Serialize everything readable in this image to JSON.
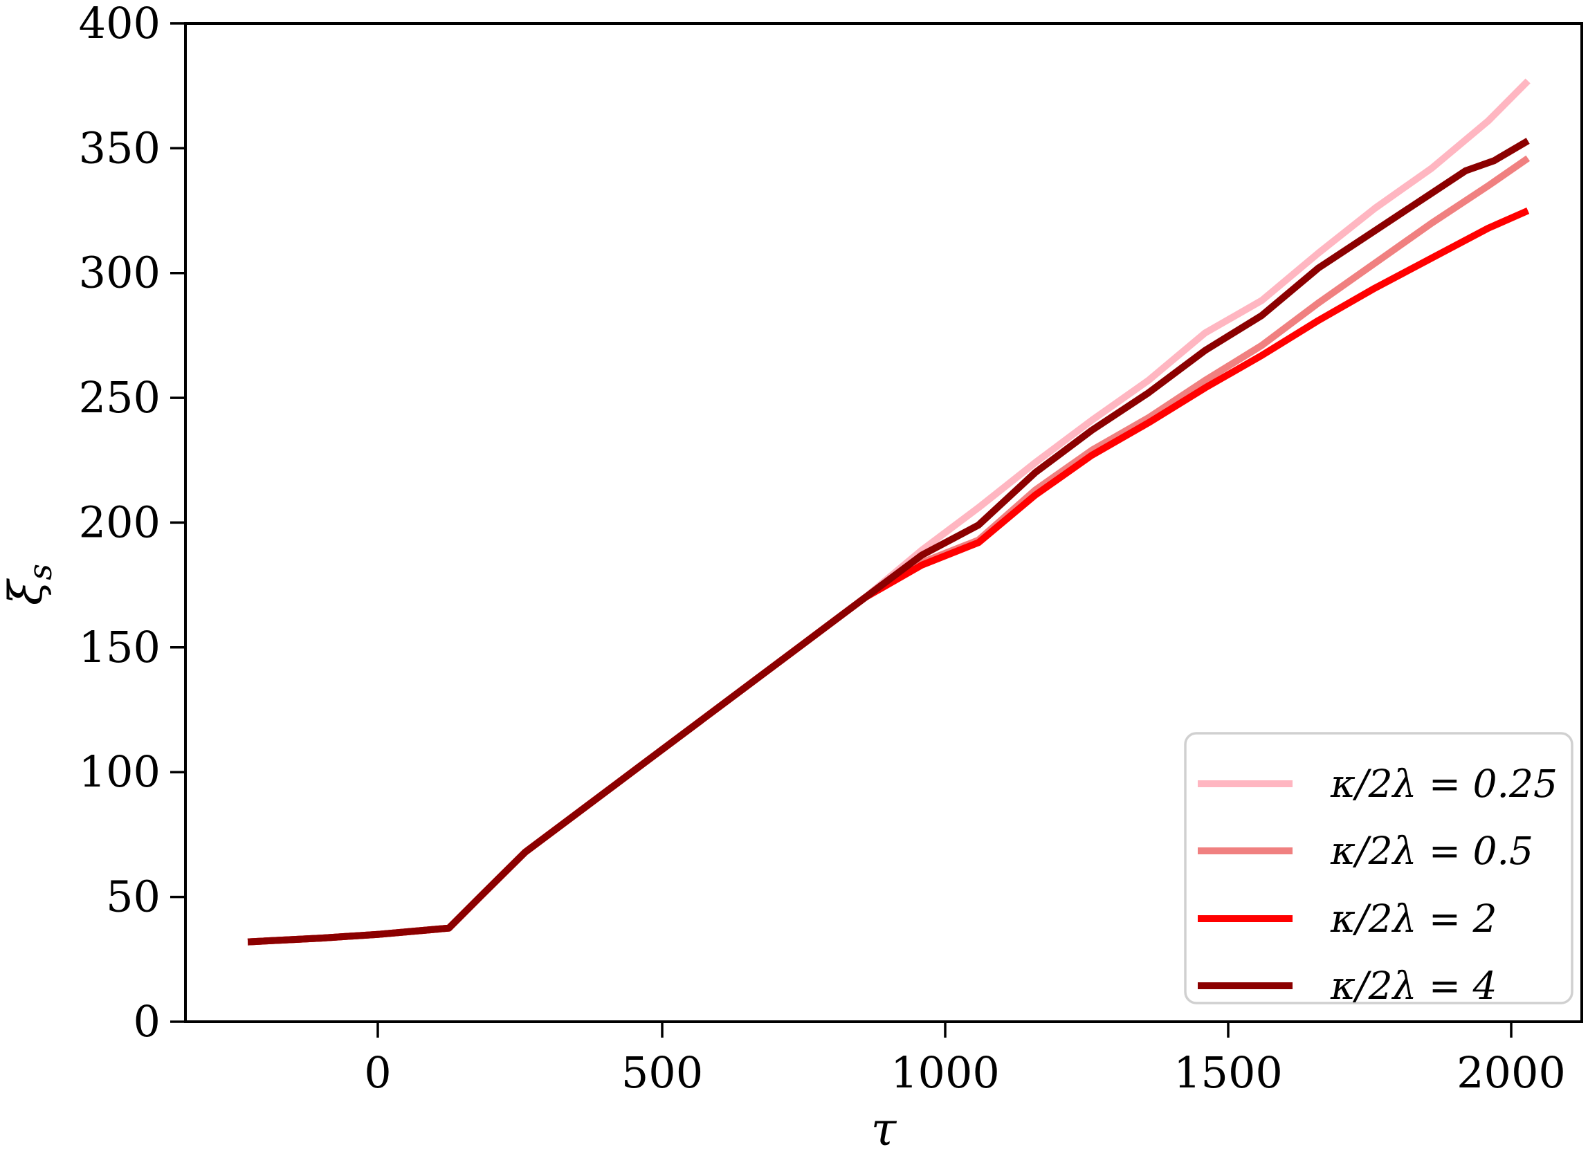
{
  "chart_data": {
    "type": "line",
    "title": "",
    "xlabel": "τ",
    "ylabel": "ξ_s",
    "ylabel_parts": {
      "base": "ξ",
      "sub": "s"
    },
    "xlim": [
      -340,
      2125
    ],
    "ylim": [
      0,
      400
    ],
    "x_tick_labels": [
      "0",
      "500",
      "1000",
      "1500",
      "2000"
    ],
    "x_tick_values": [
      0,
      500,
      1000,
      1500,
      2000
    ],
    "y_tick_labels": [
      "0",
      "50",
      "100",
      "150",
      "200",
      "250",
      "300",
      "350",
      "400"
    ],
    "y_tick_values": [
      0,
      50,
      100,
      150,
      200,
      250,
      300,
      350,
      400
    ],
    "grid": false,
    "legend_position": "lower right",
    "axis_color": "#000000",
    "legend_border_color": "#d0d0d0",
    "series": [
      {
        "label": "κ/2λ = 0.25",
        "color": "#ffb6c1",
        "points": [
          [
            -230,
            32
          ],
          [
            -100,
            33.5
          ],
          [
            0,
            35
          ],
          [
            125,
            37.5
          ],
          [
            180,
            50
          ],
          [
            260,
            68
          ],
          [
            360,
            85
          ],
          [
            460,
            102
          ],
          [
            560,
            119
          ],
          [
            660,
            136
          ],
          [
            760,
            153
          ],
          [
            860,
            170
          ],
          [
            960,
            189
          ],
          [
            1060,
            206
          ],
          [
            1160,
            224
          ],
          [
            1260,
            241
          ],
          [
            1360,
            257
          ],
          [
            1460,
            276
          ],
          [
            1560,
            289
          ],
          [
            1660,
            308
          ],
          [
            1760,
            326
          ],
          [
            1860,
            342
          ],
          [
            1960,
            361
          ],
          [
            2030,
            377
          ]
        ]
      },
      {
        "label": "κ/2λ = 0.5",
        "color": "#f08080",
        "points": [
          [
            -230,
            32
          ],
          [
            -100,
            33.5
          ],
          [
            0,
            35
          ],
          [
            125,
            37.5
          ],
          [
            180,
            50
          ],
          [
            260,
            68
          ],
          [
            360,
            85
          ],
          [
            460,
            102
          ],
          [
            560,
            119
          ],
          [
            660,
            136
          ],
          [
            760,
            153
          ],
          [
            860,
            170
          ],
          [
            960,
            184
          ],
          [
            1060,
            193
          ],
          [
            1160,
            213
          ],
          [
            1260,
            229
          ],
          [
            1360,
            242
          ],
          [
            1460,
            257
          ],
          [
            1560,
            271
          ],
          [
            1660,
            288
          ],
          [
            1760,
            304
          ],
          [
            1860,
            320
          ],
          [
            1960,
            335
          ],
          [
            2030,
            346
          ]
        ]
      },
      {
        "label": "κ/2λ = 2",
        "color": "#ff0000",
        "points": [
          [
            -230,
            32
          ],
          [
            -100,
            33.5
          ],
          [
            0,
            35
          ],
          [
            125,
            37.5
          ],
          [
            180,
            50
          ],
          [
            260,
            68
          ],
          [
            360,
            85
          ],
          [
            460,
            102
          ],
          [
            560,
            119
          ],
          [
            660,
            136
          ],
          [
            760,
            153
          ],
          [
            860,
            170
          ],
          [
            960,
            183
          ],
          [
            1060,
            192
          ],
          [
            1160,
            211
          ],
          [
            1260,
            227
          ],
          [
            1360,
            240
          ],
          [
            1460,
            254
          ],
          [
            1560,
            267
          ],
          [
            1660,
            281
          ],
          [
            1760,
            294
          ],
          [
            1860,
            306
          ],
          [
            1960,
            318
          ],
          [
            2030,
            325
          ]
        ]
      },
      {
        "label": "κ/2λ = 4",
        "color": "#8b0000",
        "points": [
          [
            -230,
            32
          ],
          [
            -100,
            33.5
          ],
          [
            0,
            35
          ],
          [
            125,
            37.5
          ],
          [
            180,
            50
          ],
          [
            260,
            68
          ],
          [
            360,
            85
          ],
          [
            460,
            102
          ],
          [
            560,
            119
          ],
          [
            660,
            136
          ],
          [
            760,
            153
          ],
          [
            860,
            170
          ],
          [
            960,
            187
          ],
          [
            1060,
            199
          ],
          [
            1160,
            220
          ],
          [
            1260,
            237
          ],
          [
            1360,
            252
          ],
          [
            1460,
            269
          ],
          [
            1560,
            283
          ],
          [
            1660,
            302
          ],
          [
            1760,
            317
          ],
          [
            1860,
            332
          ],
          [
            1920,
            341
          ],
          [
            1970,
            345
          ],
          [
            2030,
            353
          ]
        ]
      }
    ]
  }
}
